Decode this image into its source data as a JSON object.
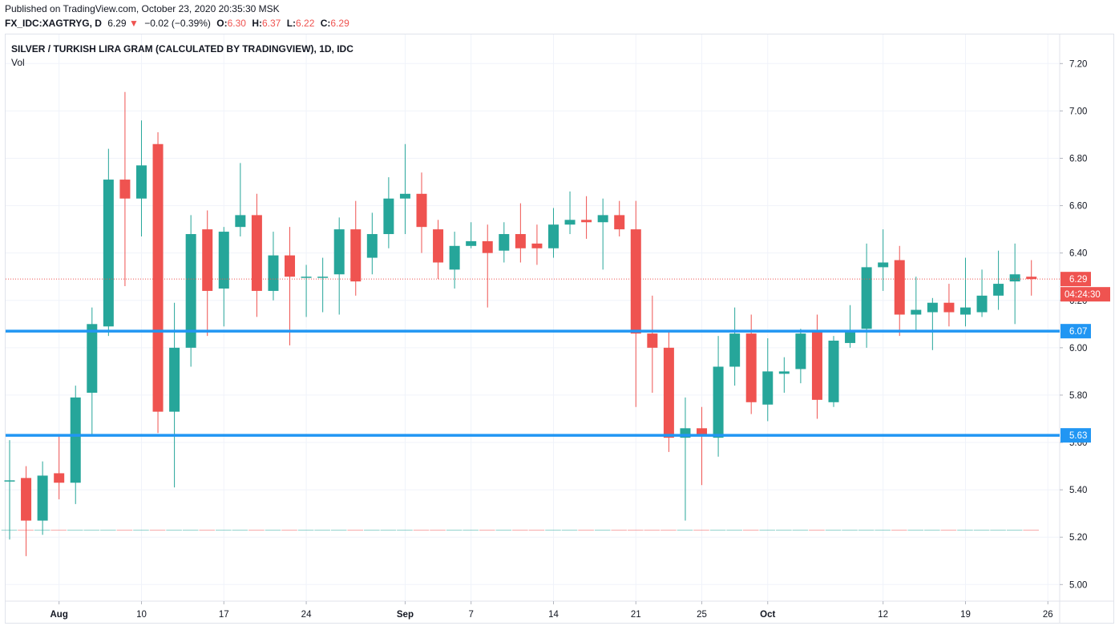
{
  "header": {
    "published": "Published on TradingView.com, October 23, 2020 20:35:30 MSK",
    "symbol": "FX_IDC:XAGTRYG, D",
    "last": "6.29",
    "arrow": "▼",
    "change": "−0.02 (−0.39%)",
    "o_label": "O:",
    "o_value": "6.30",
    "h_label": "H:",
    "h_value": "6.37",
    "l_label": "L:",
    "l_value": "6.22",
    "c_label": "C:",
    "c_value": "6.29"
  },
  "chart_title": "SILVER / TURKISH LIRA GRAM (CALCULATED BY TRADINGVIEW), 1D, IDC",
  "volume_label": "Vol",
  "colors": {
    "up": "#26a69a",
    "down": "#ef5350",
    "hline": "#2196f3",
    "grid": "#f0f3fa",
    "text": "#131722"
  },
  "chart_data": {
    "type": "candlestick",
    "y_range": [
      4.94,
      7.28
    ],
    "y_ticks": [
      "5.00",
      "5.20",
      "5.40",
      "5.60",
      "5.80",
      "6.00",
      "6.20",
      "6.40",
      "6.60",
      "6.80",
      "7.00",
      "7.20"
    ],
    "x_tick_labels": [
      {
        "label": "Aug",
        "index": 3
      },
      {
        "label": "10",
        "index": 8
      },
      {
        "label": "17",
        "index": 13
      },
      {
        "label": "24",
        "index": 18
      },
      {
        "label": "Sep",
        "index": 24
      },
      {
        "label": "7",
        "index": 28
      },
      {
        "label": "14",
        "index": 33
      },
      {
        "label": "21",
        "index": 38
      },
      {
        "label": "25",
        "index": 42
      },
      {
        "label": "Oct",
        "index": 46
      },
      {
        "label": "12",
        "index": 53
      },
      {
        "label": "19",
        "index": 58
      },
      {
        "label": "26",
        "index": 63
      }
    ],
    "candles": [
      {
        "o": 5.44,
        "h": 5.61,
        "l": 5.19,
        "c": 5.44
      },
      {
        "o": 5.45,
        "h": 5.5,
        "l": 5.12,
        "c": 5.27
      },
      {
        "o": 5.27,
        "h": 5.52,
        "l": 5.21,
        "c": 5.46
      },
      {
        "o": 5.47,
        "h": 5.63,
        "l": 5.36,
        "c": 5.43
      },
      {
        "o": 5.43,
        "h": 5.84,
        "l": 5.34,
        "c": 5.79
      },
      {
        "o": 5.81,
        "h": 6.17,
        "l": 5.63,
        "c": 6.1
      },
      {
        "o": 6.09,
        "h": 6.84,
        "l": 6.05,
        "c": 6.71
      },
      {
        "o": 6.71,
        "h": 7.08,
        "l": 6.26,
        "c": 6.63
      },
      {
        "o": 6.63,
        "h": 6.96,
        "l": 6.47,
        "c": 6.77
      },
      {
        "o": 6.86,
        "h": 6.91,
        "l": 5.64,
        "c": 5.73
      },
      {
        "o": 5.73,
        "h": 6.19,
        "l": 5.41,
        "c": 6.0
      },
      {
        "o": 6.0,
        "h": 6.56,
        "l": 5.92,
        "c": 6.48
      },
      {
        "o": 6.5,
        "h": 6.58,
        "l": 6.05,
        "c": 6.24
      },
      {
        "o": 6.25,
        "h": 6.51,
        "l": 6.09,
        "c": 6.49
      },
      {
        "o": 6.51,
        "h": 6.78,
        "l": 6.47,
        "c": 6.56
      },
      {
        "o": 6.56,
        "h": 6.65,
        "l": 6.13,
        "c": 6.24
      },
      {
        "o": 6.24,
        "h": 6.49,
        "l": 6.2,
        "c": 6.39
      },
      {
        "o": 6.39,
        "h": 6.51,
        "l": 6.01,
        "c": 6.3
      },
      {
        "o": 6.3,
        "h": 6.35,
        "l": 6.13,
        "c": 6.3
      },
      {
        "o": 6.3,
        "h": 6.38,
        "l": 6.15,
        "c": 6.3
      },
      {
        "o": 6.31,
        "h": 6.55,
        "l": 6.14,
        "c": 6.5
      },
      {
        "o": 6.5,
        "h": 6.62,
        "l": 6.22,
        "c": 6.28
      },
      {
        "o": 6.38,
        "h": 6.57,
        "l": 6.31,
        "c": 6.48
      },
      {
        "o": 6.48,
        "h": 6.72,
        "l": 6.42,
        "c": 6.63
      },
      {
        "o": 6.63,
        "h": 6.86,
        "l": 6.48,
        "c": 6.65
      },
      {
        "o": 6.65,
        "h": 6.74,
        "l": 6.4,
        "c": 6.51
      },
      {
        "o": 6.5,
        "h": 6.54,
        "l": 6.29,
        "c": 6.36
      },
      {
        "o": 6.33,
        "h": 6.49,
        "l": 6.25,
        "c": 6.43
      },
      {
        "o": 6.43,
        "h": 6.53,
        "l": 6.42,
        "c": 6.45
      },
      {
        "o": 6.45,
        "h": 6.52,
        "l": 6.17,
        "c": 6.4
      },
      {
        "o": 6.41,
        "h": 6.53,
        "l": 6.36,
        "c": 6.48
      },
      {
        "o": 6.48,
        "h": 6.61,
        "l": 6.36,
        "c": 6.42
      },
      {
        "o": 6.44,
        "h": 6.52,
        "l": 6.35,
        "c": 6.42
      },
      {
        "o": 6.42,
        "h": 6.59,
        "l": 6.38,
        "c": 6.52
      },
      {
        "o": 6.52,
        "h": 6.66,
        "l": 6.48,
        "c": 6.54
      },
      {
        "o": 6.54,
        "h": 6.64,
        "l": 6.46,
        "c": 6.53
      },
      {
        "o": 6.53,
        "h": 6.63,
        "l": 6.33,
        "c": 6.56
      },
      {
        "o": 6.56,
        "h": 6.62,
        "l": 6.47,
        "c": 6.5
      },
      {
        "o": 6.5,
        "h": 6.62,
        "l": 5.75,
        "c": 6.06
      },
      {
        "o": 6.06,
        "h": 6.22,
        "l": 5.81,
        "c": 6.0
      },
      {
        "o": 6.0,
        "h": 6.07,
        "l": 5.56,
        "c": 5.62
      },
      {
        "o": 5.62,
        "h": 5.79,
        "l": 5.27,
        "c": 5.66
      },
      {
        "o": 5.66,
        "h": 5.75,
        "l": 5.42,
        "c": 5.63
      },
      {
        "o": 5.62,
        "h": 6.05,
        "l": 5.54,
        "c": 5.92
      },
      {
        "o": 5.92,
        "h": 6.17,
        "l": 5.84,
        "c": 6.06
      },
      {
        "o": 6.06,
        "h": 6.14,
        "l": 5.72,
        "c": 5.77
      },
      {
        "o": 5.76,
        "h": 6.04,
        "l": 5.69,
        "c": 5.9
      },
      {
        "o": 5.89,
        "h": 5.96,
        "l": 5.81,
        "c": 5.9
      },
      {
        "o": 5.91,
        "h": 6.08,
        "l": 5.85,
        "c": 6.06
      },
      {
        "o": 6.07,
        "h": 6.14,
        "l": 5.7,
        "c": 5.78
      },
      {
        "o": 5.77,
        "h": 6.05,
        "l": 5.75,
        "c": 6.03
      },
      {
        "o": 6.02,
        "h": 6.18,
        "l": 6.0,
        "c": 6.07
      },
      {
        "o": 6.08,
        "h": 6.44,
        "l": 6.0,
        "c": 6.34
      },
      {
        "o": 6.34,
        "h": 6.5,
        "l": 6.24,
        "c": 6.36
      },
      {
        "o": 6.37,
        "h": 6.43,
        "l": 6.05,
        "c": 6.14
      },
      {
        "o": 6.14,
        "h": 6.3,
        "l": 6.07,
        "c": 6.16
      },
      {
        "o": 6.15,
        "h": 6.21,
        "l": 5.99,
        "c": 6.19
      },
      {
        "o": 6.19,
        "h": 6.27,
        "l": 6.09,
        "c": 6.15
      },
      {
        "o": 6.14,
        "h": 6.38,
        "l": 6.09,
        "c": 6.17
      },
      {
        "o": 6.15,
        "h": 6.33,
        "l": 6.13,
        "c": 6.22
      },
      {
        "o": 6.22,
        "h": 6.41,
        "l": 6.16,
        "c": 6.27
      },
      {
        "o": 6.28,
        "h": 6.44,
        "l": 6.1,
        "c": 6.31
      },
      {
        "o": 6.3,
        "h": 6.37,
        "l": 6.22,
        "c": 6.29
      }
    ],
    "horizontal_lines": [
      {
        "value": 6.07,
        "label": "6.07"
      },
      {
        "value": 5.63,
        "label": "5.63"
      }
    ],
    "last_price": {
      "value": 6.29,
      "label": "6.29",
      "countdown": "04:24:30"
    },
    "volume_baseline": 5.23
  }
}
